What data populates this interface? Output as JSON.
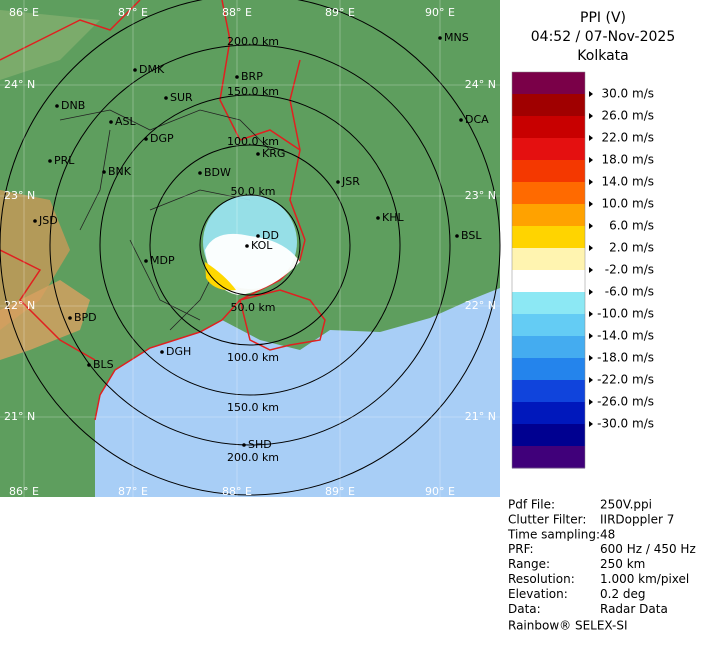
{
  "header": {
    "lines": [
      "PPI (V)",
      "04:52 / 07-Nov-2025",
      "Kolkata"
    ]
  },
  "legend": {
    "colors": [
      "#7a0048",
      "#a00000",
      "#c80000",
      "#e41010",
      "#f43800",
      "#ff6a00",
      "#ffa200",
      "#ffd400",
      "#fff4b0",
      "#ffffff",
      "#8ce8f4",
      "#64ccf4",
      "#44acf0",
      "#2484ec",
      "#1044dc",
      "#0018bc",
      "#000090",
      "#40007a"
    ],
    "labels": [
      "30.0 m/s",
      "26.0 m/s",
      "22.0 m/s",
      "18.0 m/s",
      "14.0 m/s",
      "10.0 m/s",
      "6.0 m/s",
      "2.0 m/s",
      "-2.0 m/s",
      "-6.0 m/s",
      "-10.0 m/s",
      "-14.0 m/s",
      "-18.0 m/s",
      "-22.0 m/s",
      "-26.0 m/s",
      "-30.0 m/s"
    ]
  },
  "map": {
    "lon_labels": [
      "86° E",
      "87° E",
      "88° E",
      "89° E",
      "90° E"
    ],
    "lat_labels": [
      "24° N",
      "23° N",
      "22° N",
      "21° N"
    ],
    "range_labels": [
      "50.0 km",
      "100.0 km",
      "150.0 km",
      "200.0 km"
    ],
    "cities": [
      "DMK",
      "BRP",
      "MNS",
      "DNB",
      "SUR",
      "ASL",
      "DGP",
      "DCA",
      "PRL",
      "BNK",
      "BDW",
      "KRG",
      "JSR",
      "KHL",
      "JSD",
      "DD",
      "KOL",
      "BSL",
      "MDP",
      "BPD",
      "DGH",
      "BLS",
      "SHD"
    ]
  },
  "info": {
    "rows": [
      [
        "Pdf File:",
        "250V.ppi"
      ],
      [
        "Clutter Filter:",
        "IIRDoppler 7"
      ],
      [
        "Time sampling:",
        "48"
      ],
      [
        "PRF:",
        "600 Hz / 450 Hz"
      ],
      [
        "Range:",
        "250 km"
      ],
      [
        "Resolution:",
        "1.000 km/pixel"
      ],
      [
        "Elevation:",
        "0.2 deg"
      ],
      [
        "Data:",
        "Radar Data"
      ]
    ],
    "footer": "Rainbow® SELEX-SI"
  }
}
